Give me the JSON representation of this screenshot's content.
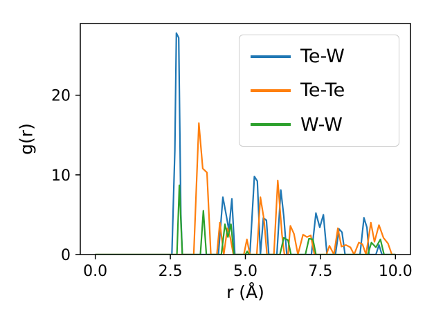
{
  "figure": {
    "background": "#ffffff",
    "spine_color": "#000000",
    "tick_color": "#000000"
  },
  "chart_data": {
    "type": "line",
    "title": "",
    "xlabel": "r (Å)",
    "ylabel": "g(r)",
    "xlim": [
      -0.5,
      10.5
    ],
    "ylim": [
      0,
      29
    ],
    "grid": false,
    "xticks": {
      "values": [
        0.0,
        2.5,
        5.0,
        7.5,
        10.0
      ],
      "labels": [
        "0.0",
        "2.5",
        "5.0",
        "7.5",
        "10.0"
      ]
    },
    "yticks": {
      "values": [
        0,
        10,
        20
      ],
      "labels": [
        "0",
        "10",
        "20"
      ]
    },
    "legend": {
      "position": "upper right",
      "border_color": "#cccccc"
    },
    "series": [
      {
        "name": "Te-W",
        "color": "#1f77b4",
        "points": [
          [
            0,
            0
          ],
          [
            2.55,
            0
          ],
          [
            2.65,
            13
          ],
          [
            2.7,
            27.8
          ],
          [
            2.78,
            27.2
          ],
          [
            2.85,
            5
          ],
          [
            2.9,
            0
          ],
          [
            4.1,
            0
          ],
          [
            4.25,
            7.2
          ],
          [
            4.35,
            5.2
          ],
          [
            4.45,
            3.1
          ],
          [
            4.55,
            7.0
          ],
          [
            4.65,
            0
          ],
          [
            5.15,
            0
          ],
          [
            5.3,
            9.8
          ],
          [
            5.4,
            9.2
          ],
          [
            5.5,
            0
          ],
          [
            5.6,
            4.6
          ],
          [
            5.7,
            4.3
          ],
          [
            5.78,
            0
          ],
          [
            6.05,
            0
          ],
          [
            6.18,
            8.1
          ],
          [
            6.28,
            4.8
          ],
          [
            6.38,
            0
          ],
          [
            7.2,
            0
          ],
          [
            7.35,
            5.2
          ],
          [
            7.48,
            3.4
          ],
          [
            7.6,
            5.0
          ],
          [
            7.72,
            0
          ],
          [
            8.0,
            0
          ],
          [
            8.12,
            3.2
          ],
          [
            8.22,
            2.8
          ],
          [
            8.32,
            0
          ],
          [
            8.82,
            0
          ],
          [
            8.95,
            4.6
          ],
          [
            9.05,
            3.4
          ],
          [
            9.12,
            0
          ],
          [
            9.35,
            0
          ],
          [
            9.45,
            1.2
          ],
          [
            9.55,
            0
          ],
          [
            10,
            0
          ]
        ]
      },
      {
        "name": "Te-Te",
        "color": "#ff7f0e",
        "points": [
          [
            0,
            0
          ],
          [
            3.28,
            0
          ],
          [
            3.45,
            16.5
          ],
          [
            3.58,
            10.8
          ],
          [
            3.72,
            10.3
          ],
          [
            3.85,
            0
          ],
          [
            4.05,
            0
          ],
          [
            4.15,
            4.0
          ],
          [
            4.28,
            0
          ],
          [
            4.4,
            3.3
          ],
          [
            4.5,
            2.1
          ],
          [
            4.6,
            0
          ],
          [
            4.95,
            0
          ],
          [
            5.05,
            1.9
          ],
          [
            5.15,
            0
          ],
          [
            5.38,
            0
          ],
          [
            5.5,
            7.2
          ],
          [
            5.62,
            4.4
          ],
          [
            5.72,
            0
          ],
          [
            5.95,
            0
          ],
          [
            6.08,
            9.3
          ],
          [
            6.22,
            2.5
          ],
          [
            6.3,
            0
          ],
          [
            6.42,
            0
          ],
          [
            6.5,
            3.6
          ],
          [
            6.62,
            2.6
          ],
          [
            6.75,
            0
          ],
          [
            6.92,
            2.5
          ],
          [
            7.05,
            2.2
          ],
          [
            7.18,
            2.4
          ],
          [
            7.3,
            0
          ],
          [
            7.7,
            0
          ],
          [
            7.8,
            1.1
          ],
          [
            7.95,
            0
          ],
          [
            8.08,
            3.3
          ],
          [
            8.2,
            1.0
          ],
          [
            8.35,
            1.2
          ],
          [
            8.5,
            0.9
          ],
          [
            8.62,
            0
          ],
          [
            8.78,
            1.5
          ],
          [
            8.9,
            1.3
          ],
          [
            9.02,
            0
          ],
          [
            9.18,
            4.0
          ],
          [
            9.3,
            1.6
          ],
          [
            9.45,
            3.7
          ],
          [
            9.6,
            2.1
          ],
          [
            9.75,
            1.4
          ],
          [
            9.88,
            0
          ],
          [
            10,
            0
          ]
        ]
      },
      {
        "name": "W-W",
        "color": "#2ca02c",
        "points": [
          [
            0,
            0
          ],
          [
            2.72,
            0
          ],
          [
            2.8,
            8.7
          ],
          [
            2.9,
            0
          ],
          [
            3.5,
            0
          ],
          [
            3.6,
            5.5
          ],
          [
            3.7,
            0
          ],
          [
            4.2,
            0
          ],
          [
            4.32,
            3.8
          ],
          [
            4.42,
            2.2
          ],
          [
            4.52,
            3.8
          ],
          [
            4.62,
            0
          ],
          [
            5.0,
            0
          ],
          [
            5.06,
            0.4
          ],
          [
            5.12,
            0
          ],
          [
            6.15,
            0
          ],
          [
            6.28,
            2.1
          ],
          [
            6.42,
            1.8
          ],
          [
            6.52,
            0
          ],
          [
            7.0,
            0
          ],
          [
            7.12,
            2.0
          ],
          [
            7.25,
            1.9
          ],
          [
            7.35,
            0
          ],
          [
            9.08,
            0
          ],
          [
            9.2,
            1.5
          ],
          [
            9.35,
            0.9
          ],
          [
            9.5,
            1.9
          ],
          [
            9.62,
            0
          ],
          [
            10,
            0
          ]
        ]
      }
    ]
  }
}
